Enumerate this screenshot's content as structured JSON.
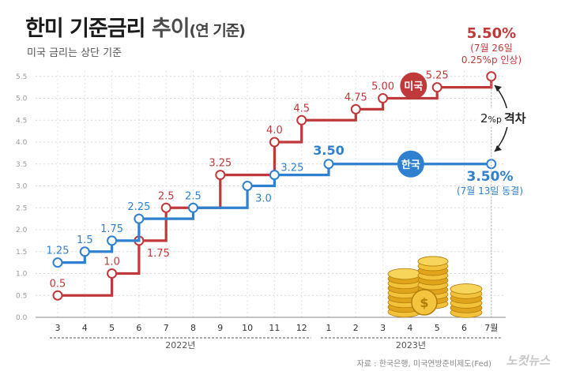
{
  "header": {
    "title_main": "한미 기준금리",
    "title_second": " 추이",
    "title_paren": "(연 기준)",
    "subtitle": "미국 금리는 상단 기준"
  },
  "footer": {
    "source": "자료 : 한국은행, 미국연방준비제도(Fed)",
    "brand": "노컷뉴스"
  },
  "colors": {
    "us": "#c0393a",
    "kr": "#2f80cf",
    "grid": "#d9d9d9",
    "axis": "#555555"
  },
  "chart_data": {
    "type": "line",
    "step": true,
    "categories": [
      "3",
      "4",
      "5",
      "6",
      "7",
      "8",
      "9",
      "10",
      "11",
      "12",
      "1",
      "2",
      "3",
      "4",
      "5",
      "6",
      "7월"
    ],
    "year_groups": [
      {
        "label": "2022년",
        "start": 0,
        "end": 9
      },
      {
        "label": "2023년",
        "start": 10,
        "end": 16
      }
    ],
    "ylim": [
      0,
      5.5
    ],
    "yticks": [
      "0.0",
      "0.5",
      "1.0",
      "1.5",
      "2.0",
      "2.5",
      "3.0",
      "3.5",
      "4.0",
      "4.5",
      "5.0",
      "5.5"
    ],
    "series": [
      {
        "name": "미국",
        "color": "#c0393a",
        "values": [
          0.5,
          0.5,
          1.0,
          1.75,
          2.5,
          2.5,
          3.25,
          3.25,
          4.0,
          4.5,
          4.5,
          4.75,
          5.0,
          5.0,
          5.25,
          5.25,
          5.5
        ],
        "markers": [
          {
            "i": 0,
            "v": 0.5,
            "label": "0.5",
            "pos": "above"
          },
          {
            "i": 2,
            "v": 1.0,
            "label": "1.0",
            "pos": "above"
          },
          {
            "i": 3,
            "v": 1.75,
            "label": "1.75",
            "pos": "below-right"
          },
          {
            "i": 4,
            "v": 2.5,
            "label": "2.5",
            "pos": "above"
          },
          {
            "i": 6,
            "v": 3.25,
            "label": "3.25",
            "pos": "above"
          },
          {
            "i": 8,
            "v": 4.0,
            "label": "4.0",
            "pos": "above"
          },
          {
            "i": 9,
            "v": 4.5,
            "label": "4.5",
            "pos": "above"
          },
          {
            "i": 11,
            "v": 4.75,
            "label": "4.75",
            "pos": "above"
          },
          {
            "i": 12,
            "v": 5.0,
            "label": "5.00",
            "pos": "above"
          },
          {
            "i": 14,
            "v": 5.25,
            "label": "5.25",
            "pos": "above"
          },
          {
            "i": 16,
            "v": 5.5,
            "label": "",
            "pos": "none"
          }
        ]
      },
      {
        "name": "한국",
        "color": "#2f80cf",
        "values": [
          1.25,
          1.5,
          1.75,
          2.25,
          2.25,
          2.5,
          2.5,
          3.0,
          3.25,
          3.25,
          3.5,
          3.5,
          3.5,
          3.5,
          3.5,
          3.5,
          3.5
        ],
        "markers": [
          {
            "i": 0,
            "v": 1.25,
            "label": "1.25",
            "pos": "above"
          },
          {
            "i": 1,
            "v": 1.5,
            "label": "1.5",
            "pos": "above"
          },
          {
            "i": 2,
            "v": 1.75,
            "label": "1.75",
            "pos": "above"
          },
          {
            "i": 3,
            "v": 2.25,
            "label": "2.25",
            "pos": "above"
          },
          {
            "i": 5,
            "v": 2.5,
            "label": "2.5",
            "pos": "above"
          },
          {
            "i": 7,
            "v": 3.0,
            "label": "3.0",
            "pos": "below-right"
          },
          {
            "i": 8,
            "v": 3.25,
            "label": "3.25",
            "pos": "right"
          },
          {
            "i": 10,
            "v": 3.5,
            "label": "3.50",
            "pos": "above-big"
          },
          {
            "i": 16,
            "v": 3.5,
            "label": "",
            "pos": "none"
          }
        ]
      }
    ],
    "badges": [
      {
        "label": "미국",
        "series": 0,
        "at": 13.1,
        "v": 5.25
      },
      {
        "label": "한국",
        "series": 1,
        "at": 13.0,
        "v": 3.5
      }
    ],
    "annotations": {
      "us_final_value": "5.50%",
      "us_final_note1": "(7월 26일",
      "us_final_note2": "0.25%p 인상)",
      "kr_final_value": "3.50%",
      "kr_final_note": "(7월 13일 동결)",
      "gap_value": "2",
      "gap_unit": "%p",
      "gap_word": "격차"
    }
  }
}
